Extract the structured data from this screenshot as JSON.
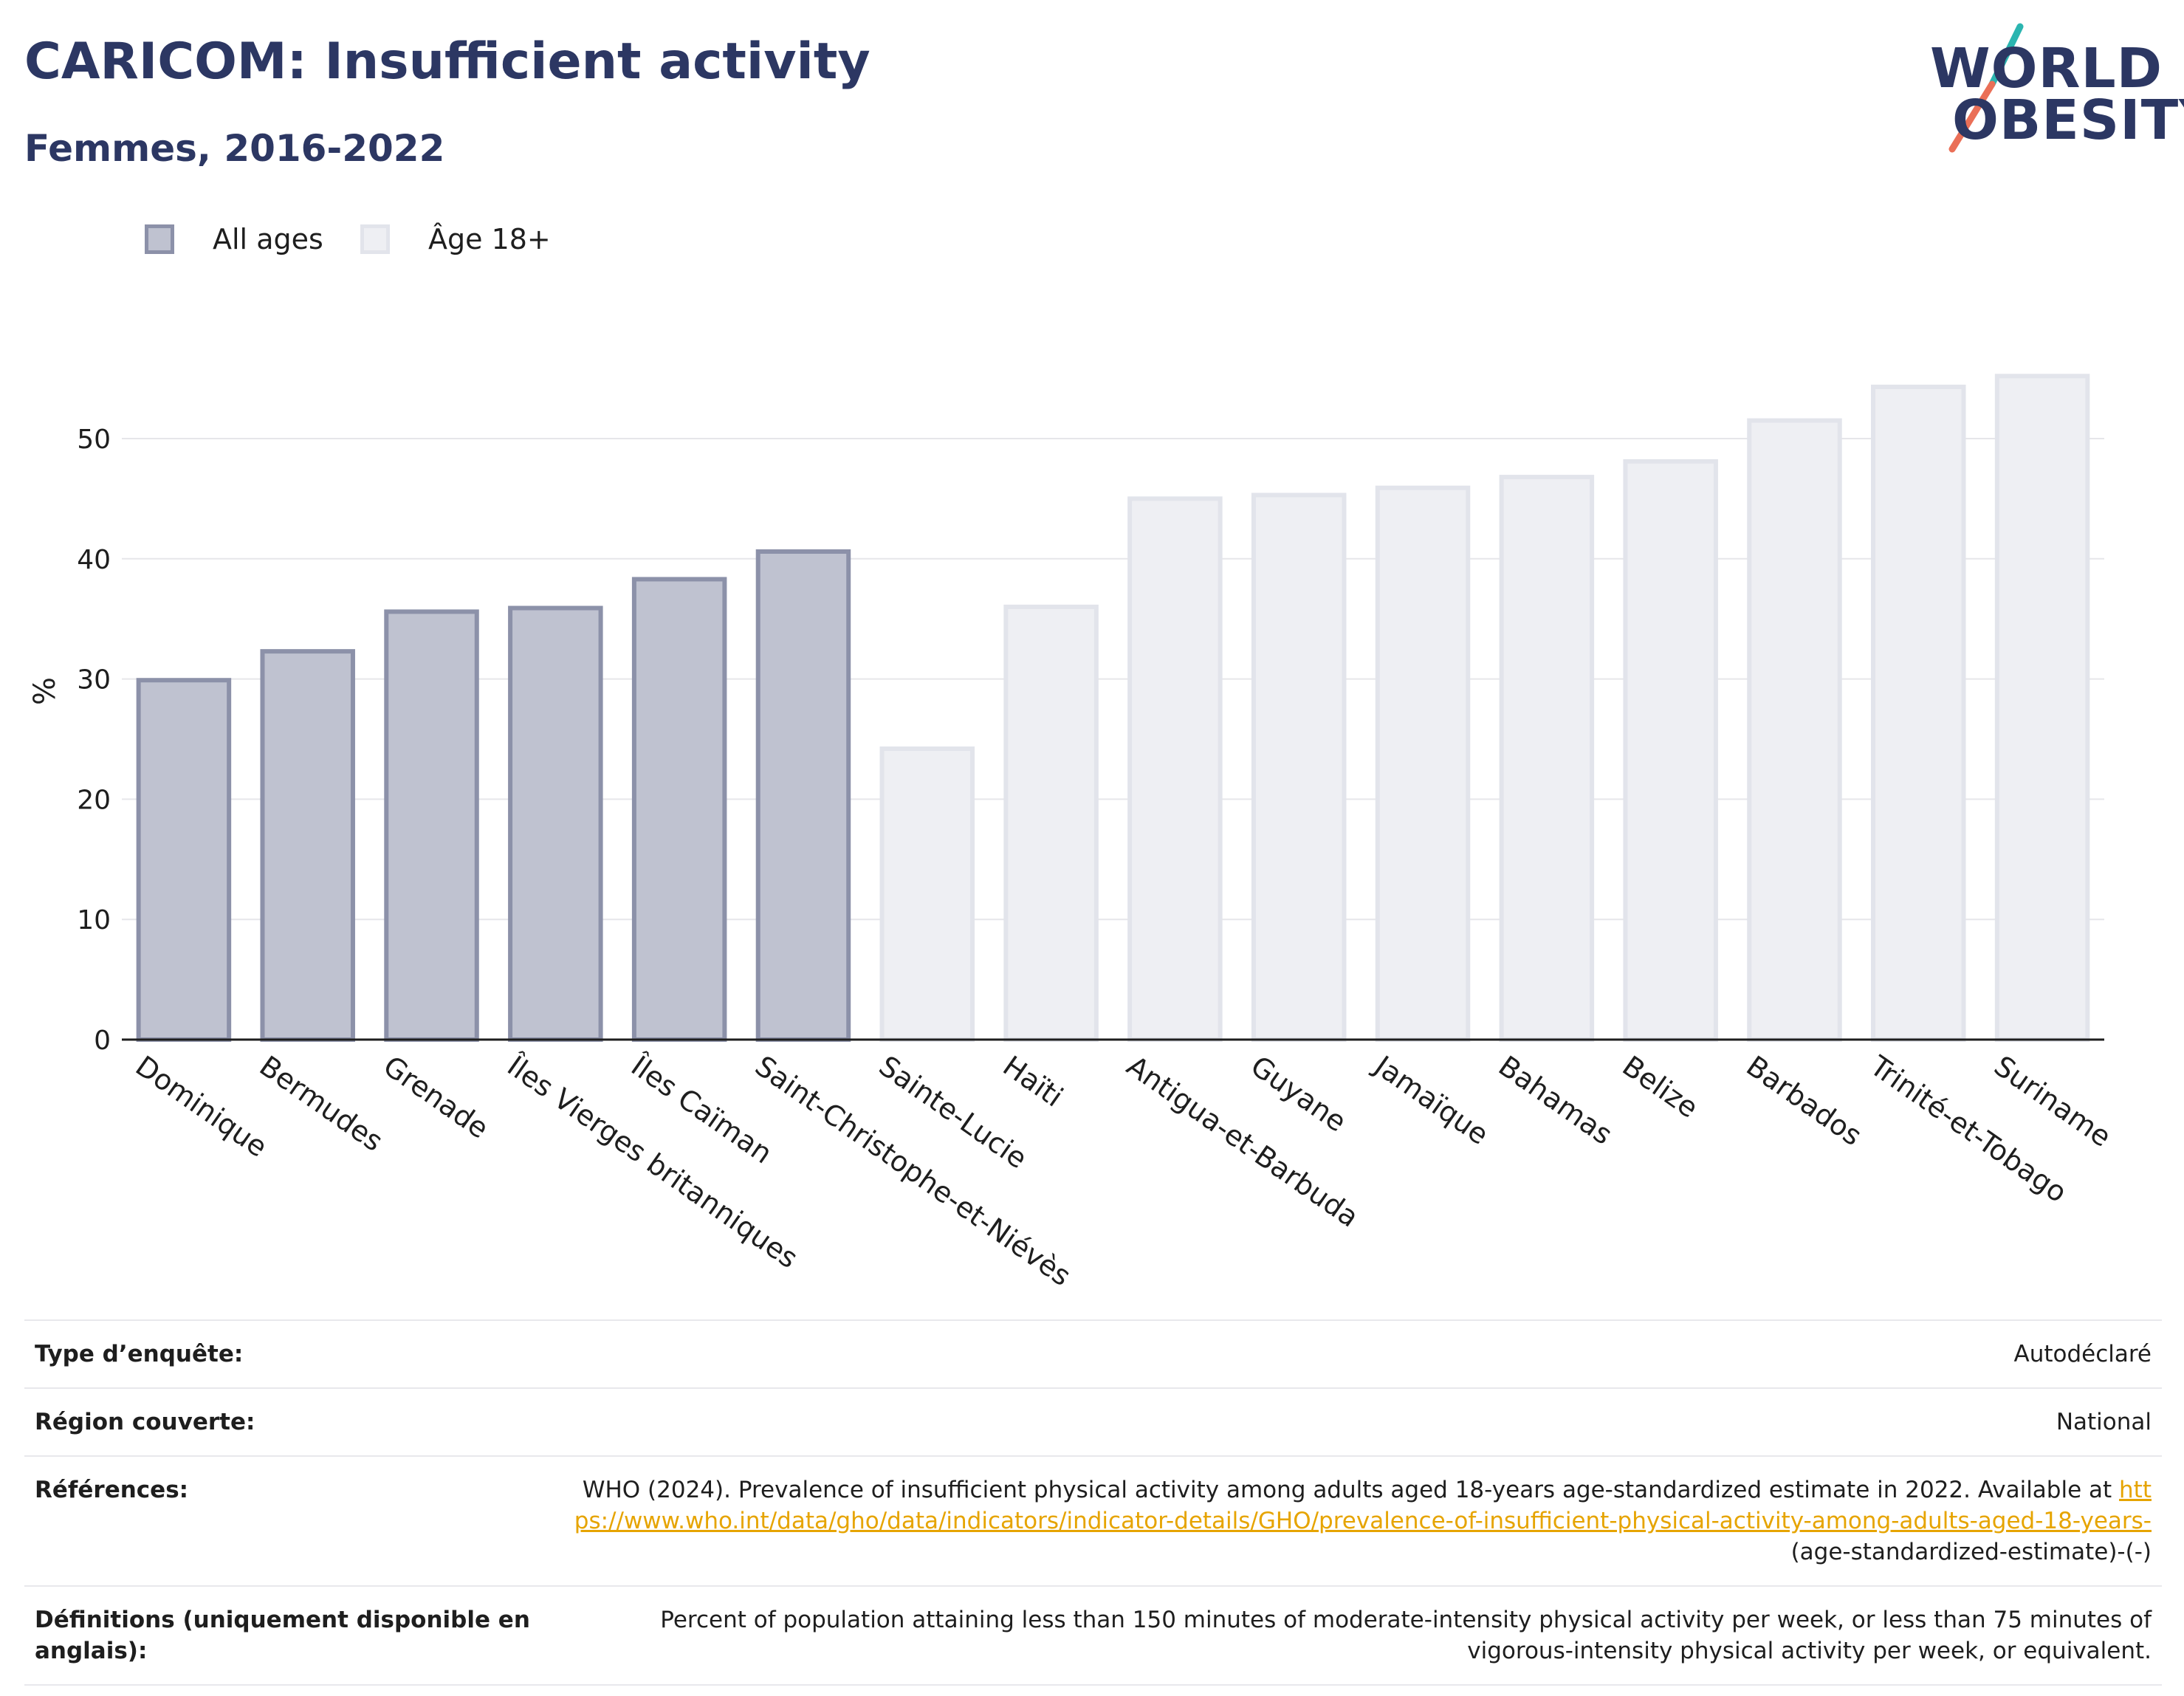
{
  "header": {
    "title": "CARICOM: Insufficient activity",
    "subtitle": "Femmes, 2016-2022"
  },
  "logo": {
    "line1": "WORLD",
    "line2": "OBESITY",
    "colors": {
      "text": "#2c3763",
      "slash_top": "#2bb5b0",
      "slash_bottom": "#ea6f57"
    }
  },
  "colors": {
    "all_ages": "#bfc2d0",
    "all_ages_border": "#8c91a9",
    "age18": "#eeeff3",
    "age18_border": "#e2e4eb",
    "grid": "#e6e6ea",
    "axis": "#1e1e1e",
    "link": "#e6a400"
  },
  "legend": {
    "items": [
      {
        "label": "All ages",
        "color": "#bfc2d0",
        "border": "#8c91a9"
      },
      {
        "label": "Âge 18+",
        "color": "#eeeff3",
        "border": "#e2e4eb"
      }
    ]
  },
  "chart_data": {
    "type": "bar",
    "ylabel": "%",
    "xlabel": "",
    "ylim": [
      0,
      57
    ],
    "yticks": [
      0,
      10,
      20,
      30,
      40,
      50
    ],
    "grid": true,
    "legend_position": "top-left",
    "categories": [
      "Dominique",
      "Bermudes",
      "Grenade",
      "Îles Vierges britanniques",
      "Îles Caïman",
      "Saint-Christophe-et-Niévès",
      "Sainte-Lucie",
      "Haïti",
      "Antigua-et-Barbuda",
      "Guyane",
      "Jamaïque",
      "Bahamas",
      "Belize",
      "Barbados",
      "Trinité-et-Tobago",
      "Suriname"
    ],
    "values": [
      29.9,
      32.3,
      35.6,
      35.9,
      38.3,
      40.6,
      24.2,
      36.0,
      45.0,
      45.3,
      45.9,
      46.8,
      48.1,
      51.5,
      54.3,
      55.2
    ],
    "series_of_bar": [
      "All ages",
      "All ages",
      "All ages",
      "All ages",
      "All ages",
      "All ages",
      "Âge 18+",
      "Âge 18+",
      "Âge 18+",
      "Âge 18+",
      "Âge 18+",
      "Âge 18+",
      "Âge 18+",
      "Âge 18+",
      "Âge 18+",
      "Âge 18+"
    ]
  },
  "info": {
    "rows": [
      {
        "key": "Type d’enquête:",
        "value": "Autodéclaré"
      },
      {
        "key": "Région couverte:",
        "value": "National"
      },
      {
        "key": "Références:",
        "value": "WHO (2024). Prevalence of insufficient physical activity among adults aged 18-years age-standardized estimate in 2022. Available at",
        "link": "https://www.who.int/data/gho/data/indicators/indicator-details/GHO/prevalence-of-insufficient-physical-activity-among-adults-aged-18-years-",
        "suffix": "(age-standardized-estimate)-(-)"
      },
      {
        "key": "Définitions (uniquement disponible en anglais):",
        "value": "Percent of population attaining less than 150 minutes of moderate-intensity physical activity per week, or less than 75 minutes of vigorous-intensity physical activity per week, or equivalent."
      }
    ]
  }
}
